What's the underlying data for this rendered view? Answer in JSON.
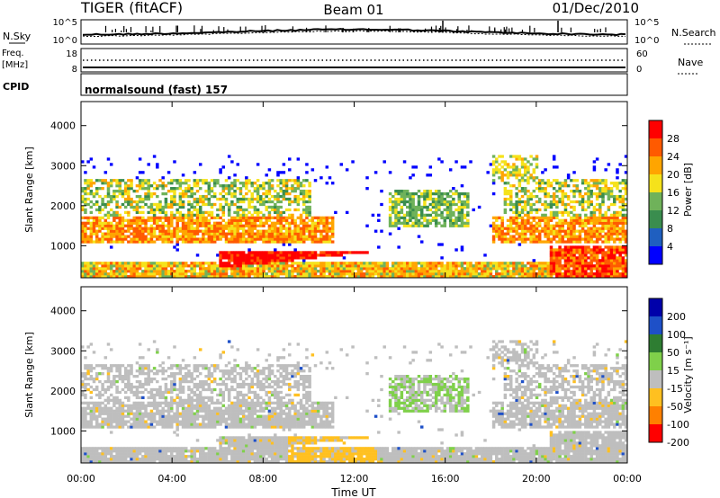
{
  "header": {
    "radar": "TIGER (fitACF)",
    "beam": "Beam 01",
    "date": "01/Dec/2010"
  },
  "noise": {
    "left_label": "N.Sky",
    "right_label": "N.Search",
    "left_ticks": [
      "10^5",
      "10^0"
    ],
    "right_ticks": [
      "10^5",
      "10^0"
    ]
  },
  "freq": {
    "left_label_line1": "Freq.",
    "left_label_line2": "[MHz]",
    "left_ticks": [
      "18",
      "8"
    ],
    "right_label": "Nave",
    "right_ticks": [
      "60",
      "0"
    ]
  },
  "cpid": {
    "label": "CPID",
    "program": "normalsound (fast) 157"
  },
  "colors": {
    "power": [
      "#0000ff",
      "#1f5fc0",
      "#3a8d4e",
      "#6fb25a",
      "#f5e21b",
      "#ffa500",
      "#ff5a00",
      "#ff0000"
    ],
    "velocity": [
      "#0000aa",
      "#1e50c8",
      "#2e7d32",
      "#7fd04a",
      "#bebebe",
      "#ffc020",
      "#ff8000",
      "#ff0000"
    ]
  },
  "chart_data": [
    {
      "type": "heatmap",
      "title": "Power",
      "xlabel": "Time UT",
      "ylabel": "Slant Range [km]",
      "xlim": [
        "00:00",
        "00:00"
      ],
      "x_ticks": [
        "00:00",
        "04:00",
        "08:00",
        "12:00",
        "16:00",
        "20:00",
        "00:00"
      ],
      "ylim": [
        200,
        4600
      ],
      "y_ticks": [
        1000,
        2000,
        3000,
        4000
      ],
      "colorbar": {
        "label": "Power [dB]",
        "range": [
          0,
          32
        ],
        "ticks": [
          4,
          8,
          12,
          16,
          20,
          24,
          28
        ]
      }
    },
    {
      "type": "heatmap",
      "title": "Velocity",
      "xlabel": "Time UT",
      "ylabel": "Slant Range [km]",
      "xlim": [
        "00:00",
        "00:00"
      ],
      "x_ticks": [
        "00:00",
        "04:00",
        "08:00",
        "12:00",
        "16:00",
        "20:00",
        "00:00"
      ],
      "ylim": [
        200,
        4600
      ],
      "y_ticks": [
        1000,
        2000,
        3000,
        4000
      ],
      "colorbar": {
        "label": "Velocity [m s⁻¹]",
        "ticks": [
          200,
          100,
          50,
          15,
          -15,
          -50,
          -100,
          -200
        ]
      }
    }
  ]
}
